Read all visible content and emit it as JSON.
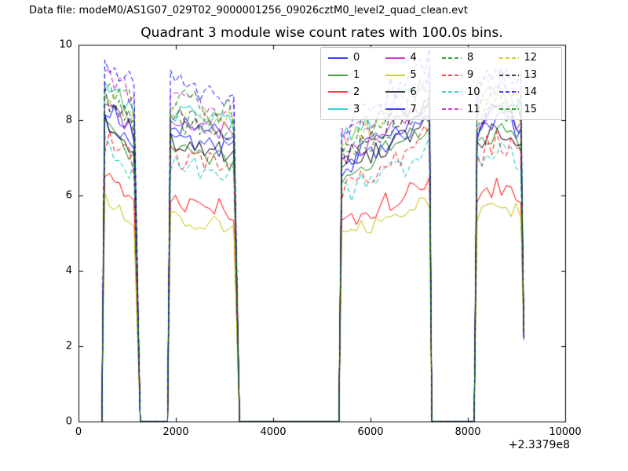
{
  "header": {
    "data_file_label": "Data file: modeM0/AS1G07_029T02_9000001256_09026cztM0_level2_quad_clean.evt"
  },
  "chart_data": {
    "type": "line",
    "title": "Quadrant 3 module wise count rates with 100.0s bins.",
    "xlabel": "",
    "ylabel": "",
    "xlim": [
      0,
      10000
    ],
    "ylim": [
      0,
      10
    ],
    "xticks": [
      "0",
      "2000",
      "4000",
      "6000",
      "8000",
      "10000"
    ],
    "yticks": [
      "0",
      "2",
      "4",
      "6",
      "8",
      "10"
    ],
    "x_offset_label": "+2.3379e8",
    "bin_width_s": 100.0,
    "grid": false,
    "legend_position": "upper right",
    "legend_columns": 4,
    "active_windows_x": [
      [
        480,
        1270
      ],
      [
        1830,
        3310
      ],
      [
        5350,
        7260
      ],
      [
        8130,
        9150
      ]
    ],
    "gap_value": 0.0,
    "final_value": 2.3,
    "series": [
      {
        "label": "0",
        "color": "#0000ff",
        "linestyle": "solid",
        "window_means": [
          7.6,
          7.3,
          7.4,
          7.6
        ]
      },
      {
        "label": "1",
        "color": "#008000",
        "linestyle": "solid",
        "window_means": [
          7.3,
          7.0,
          7.2,
          7.3
        ]
      },
      {
        "label": "2",
        "color": "#ff0000",
        "linestyle": "solid",
        "window_means": [
          6.2,
          5.7,
          5.8,
          5.9
        ]
      },
      {
        "label": "3",
        "color": "#00bfbf",
        "linestyle": "solid",
        "window_means": [
          8.5,
          8.0,
          8.3,
          8.4
        ]
      },
      {
        "label": "4",
        "color": "#bf00bf",
        "linestyle": "solid",
        "window_means": [
          8.0,
          7.8,
          7.7,
          7.9
        ]
      },
      {
        "label": "5",
        "color": "#bfbf00",
        "linestyle": "solid",
        "window_means": [
          5.6,
          5.3,
          5.4,
          5.5
        ]
      },
      {
        "label": "6",
        "color": "#000000",
        "linestyle": "solid",
        "window_means": [
          7.5,
          7.2,
          7.3,
          7.4
        ]
      },
      {
        "label": "7",
        "color": "#0000ff",
        "linestyle": "solid",
        "window_means": [
          7.9,
          7.7,
          7.6,
          7.8
        ]
      },
      {
        "label": "8",
        "color": "#008000",
        "linestyle": "dashed",
        "window_means": [
          8.2,
          7.8,
          7.7,
          7.9
        ]
      },
      {
        "label": "9",
        "color": "#ff0000",
        "linestyle": "dashed",
        "window_means": [
          7.0,
          6.8,
          6.9,
          7.0
        ]
      },
      {
        "label": "10",
        "color": "#00bfbf",
        "linestyle": "dashed",
        "window_means": [
          6.9,
          6.7,
          6.6,
          6.9
        ]
      },
      {
        "label": "11",
        "color": "#bf00bf",
        "linestyle": "dashed",
        "window_means": [
          8.8,
          8.4,
          8.3,
          8.6
        ]
      },
      {
        "label": "12",
        "color": "#bfbf00",
        "linestyle": "dashed",
        "window_means": [
          8.4,
          8.0,
          8.0,
          8.2
        ]
      },
      {
        "label": "13",
        "color": "#000000",
        "linestyle": "dashed",
        "window_means": [
          8.1,
          7.8,
          7.8,
          8.0
        ]
      },
      {
        "label": "14",
        "color": "#0000ff",
        "linestyle": "dashed",
        "window_means": [
          9.2,
          8.8,
          8.7,
          9.0
        ]
      },
      {
        "label": "15",
        "color": "#008000",
        "linestyle": "dashed",
        "window_means": [
          8.6,
          8.3,
          8.2,
          8.5
        ]
      }
    ]
  }
}
